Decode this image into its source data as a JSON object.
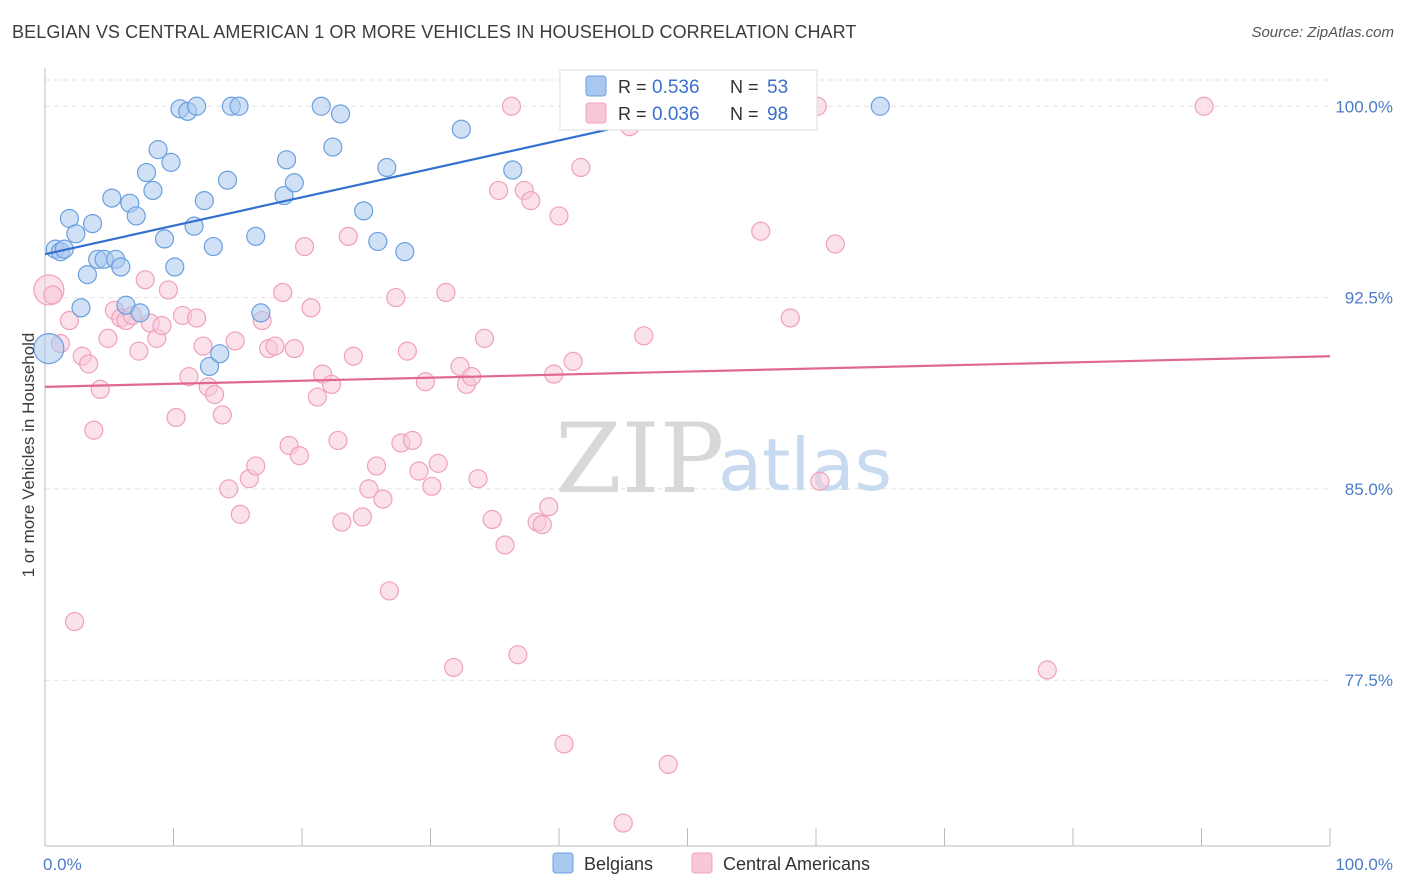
{
  "title": "BELGIAN VS CENTRAL AMERICAN 1 OR MORE VEHICLES IN HOUSEHOLD CORRELATION CHART",
  "source": "Source: ZipAtlas.com",
  "watermark": {
    "zip": "ZIP",
    "atlas": "atlas"
  },
  "chart_data": {
    "type": "scatter",
    "ylabel": "1 or more Vehicles in Household",
    "xlim": [
      0,
      100
    ],
    "ylim": [
      71,
      101.5
    ],
    "x_ticks": [
      "0.0%",
      "100.0%"
    ],
    "y_ticks": [
      {
        "value": 100.0,
        "label": "100.0%"
      },
      {
        "value": 92.5,
        "label": "92.5%"
      },
      {
        "value": 85.0,
        "label": "85.0%"
      },
      {
        "value": 77.5,
        "label": "77.5%"
      }
    ],
    "grid": "horizontal dashed",
    "legend": {
      "placement": "top-center",
      "rows": [
        {
          "r_label": "R = ",
          "r_value": "0.536",
          "n_label": "N = ",
          "n_value": "53"
        },
        {
          "r_label": "R = ",
          "r_value": "0.036",
          "n_label": "N = ",
          "n_value": "98"
        }
      ]
    },
    "series": [
      {
        "name": "Belgians",
        "color": "#6a9fe0",
        "fill": "#a9c8ef",
        "line_color": "#3370d0",
        "trend": {
          "x": [
            0,
            52
          ],
          "y": [
            94.2,
            100.0
          ]
        },
        "points": [
          [
            0.3,
            90.5
          ],
          [
            0.8,
            94.4
          ],
          [
            1.2,
            94.3
          ],
          [
            1.5,
            94.4
          ],
          [
            1.9,
            95.6
          ],
          [
            2.4,
            95.0
          ],
          [
            2.8,
            92.1
          ],
          [
            3.3,
            93.4
          ],
          [
            3.7,
            95.4
          ],
          [
            4.1,
            94.0
          ],
          [
            4.6,
            94.0
          ],
          [
            5.2,
            96.4
          ],
          [
            5.5,
            94.0
          ],
          [
            5.9,
            93.7
          ],
          [
            6.3,
            92.2
          ],
          [
            6.6,
            96.2
          ],
          [
            7.1,
            95.7
          ],
          [
            7.4,
            91.9
          ],
          [
            7.9,
            97.4
          ],
          [
            8.4,
            96.7
          ],
          [
            8.8,
            98.3
          ],
          [
            9.3,
            94.8
          ],
          [
            9.8,
            97.8
          ],
          [
            10.1,
            93.7
          ],
          [
            10.5,
            99.9
          ],
          [
            11.1,
            99.8
          ],
          [
            11.6,
            95.3
          ],
          [
            11.8,
            100.0
          ],
          [
            12.4,
            96.3
          ],
          [
            12.8,
            89.8
          ],
          [
            13.1,
            94.5
          ],
          [
            13.6,
            90.3
          ],
          [
            14.2,
            97.1
          ],
          [
            14.5,
            100.0
          ],
          [
            15.1,
            100.0
          ],
          [
            16.4,
            94.9
          ],
          [
            16.8,
            91.9
          ],
          [
            18.6,
            96.5
          ],
          [
            18.8,
            97.9
          ],
          [
            19.4,
            97.0
          ],
          [
            21.5,
            100.0
          ],
          [
            22.4,
            98.4
          ],
          [
            23.0,
            99.7
          ],
          [
            24.8,
            95.9
          ],
          [
            25.9,
            94.7
          ],
          [
            26.6,
            97.6
          ],
          [
            28.0,
            94.3
          ],
          [
            32.4,
            99.1
          ],
          [
            36.4,
            97.5
          ],
          [
            51.9,
            100.0
          ],
          [
            52.3,
            99.9
          ],
          [
            53.6,
            99.8
          ],
          [
            65.0,
            100.0
          ]
        ]
      },
      {
        "name": "Central Americans",
        "color": "#f0a0bc",
        "fill": "#f8c8d8",
        "line_color": "#e06890",
        "trend": {
          "x": [
            0,
            100
          ],
          "y": [
            89.0,
            90.2
          ]
        },
        "points": [
          [
            0.3,
            92.8
          ],
          [
            0.6,
            92.6
          ],
          [
            1.2,
            90.7
          ],
          [
            1.9,
            91.6
          ],
          [
            2.3,
            79.8
          ],
          [
            2.9,
            90.2
          ],
          [
            3.4,
            89.9
          ],
          [
            3.8,
            87.3
          ],
          [
            4.3,
            88.9
          ],
          [
            4.9,
            90.9
          ],
          [
            5.4,
            92.0
          ],
          [
            5.9,
            91.7
          ],
          [
            6.3,
            91.6
          ],
          [
            6.8,
            91.8
          ],
          [
            7.3,
            90.4
          ],
          [
            7.8,
            93.2
          ],
          [
            8.2,
            91.5
          ],
          [
            8.7,
            90.9
          ],
          [
            9.1,
            91.4
          ],
          [
            9.6,
            92.8
          ],
          [
            10.2,
            87.8
          ],
          [
            10.7,
            91.8
          ],
          [
            11.2,
            89.4
          ],
          [
            11.8,
            91.7
          ],
          [
            12.3,
            90.6
          ],
          [
            12.7,
            89.0
          ],
          [
            13.2,
            88.7
          ],
          [
            13.8,
            87.9
          ],
          [
            14.3,
            85.0
          ],
          [
            14.8,
            90.8
          ],
          [
            15.2,
            84.0
          ],
          [
            15.9,
            85.4
          ],
          [
            16.4,
            85.9
          ],
          [
            16.9,
            91.6
          ],
          [
            17.4,
            90.5
          ],
          [
            17.9,
            90.6
          ],
          [
            18.5,
            92.7
          ],
          [
            19.0,
            86.7
          ],
          [
            19.4,
            90.5
          ],
          [
            19.8,
            86.3
          ],
          [
            20.2,
            94.5
          ],
          [
            20.7,
            92.1
          ],
          [
            21.2,
            88.6
          ],
          [
            21.6,
            89.5
          ],
          [
            22.3,
            89.1
          ],
          [
            22.8,
            86.9
          ],
          [
            23.1,
            83.7
          ],
          [
            23.6,
            94.9
          ],
          [
            24.0,
            90.2
          ],
          [
            24.7,
            83.9
          ],
          [
            25.2,
            85.0
          ],
          [
            25.8,
            85.9
          ],
          [
            26.3,
            84.6
          ],
          [
            26.8,
            81.0
          ],
          [
            27.3,
            92.5
          ],
          [
            27.7,
            86.8
          ],
          [
            28.2,
            90.4
          ],
          [
            28.6,
            86.9
          ],
          [
            29.1,
            85.7
          ],
          [
            29.6,
            89.2
          ],
          [
            30.1,
            85.1
          ],
          [
            30.6,
            86.0
          ],
          [
            31.2,
            92.7
          ],
          [
            31.8,
            78.0
          ],
          [
            32.3,
            89.8
          ],
          [
            32.8,
            89.1
          ],
          [
            33.2,
            89.4
          ],
          [
            33.7,
            85.4
          ],
          [
            34.2,
            90.9
          ],
          [
            34.8,
            83.8
          ],
          [
            35.3,
            96.7
          ],
          [
            35.8,
            82.8
          ],
          [
            36.3,
            100.0
          ],
          [
            36.8,
            78.5
          ],
          [
            37.3,
            96.7
          ],
          [
            37.8,
            96.3
          ],
          [
            38.3,
            83.7
          ],
          [
            38.7,
            83.6
          ],
          [
            39.2,
            84.3
          ],
          [
            39.6,
            89.5
          ],
          [
            40.0,
            95.7
          ],
          [
            40.4,
            75.0
          ],
          [
            41.1,
            90.0
          ],
          [
            41.7,
            97.6
          ],
          [
            42.2,
            99.9
          ],
          [
            45.0,
            71.9
          ],
          [
            46.6,
            91.0
          ],
          [
            48.5,
            74.2
          ],
          [
            50.6,
            100.0
          ],
          [
            55.7,
            95.1
          ],
          [
            58.0,
            91.7
          ],
          [
            60.1,
            100.0
          ],
          [
            60.3,
            85.3
          ],
          [
            61.5,
            94.6
          ],
          [
            78.0,
            77.9
          ],
          [
            90.2,
            100.0
          ],
          [
            45.5,
            99.2
          ],
          [
            53.2,
            100.0
          ]
        ]
      }
    ]
  }
}
